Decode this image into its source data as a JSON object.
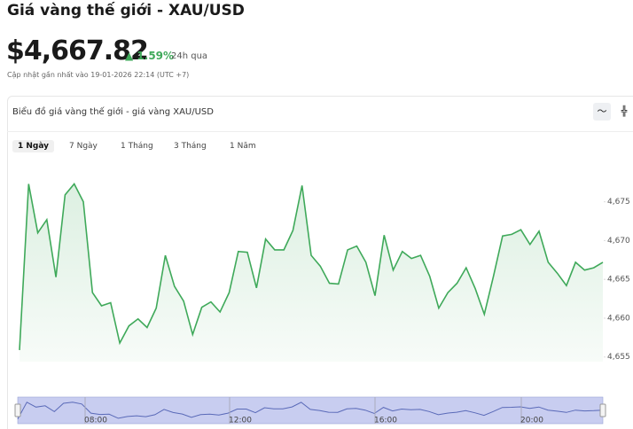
{
  "header": {
    "title": "Giá vàng thế giới - XAU/USD",
    "price": "$4,667.82",
    "change": "1.59%",
    "period": "24h qua",
    "updated": "Cập nhật gần nhất vào 19-01-2026 22:14 (UTC +7)"
  },
  "tabs": {
    "items": [
      "1 Ngày",
      "7 Ngày",
      "1 Tháng",
      "3 Tháng",
      "1 Năm"
    ],
    "active": 0
  },
  "chart_data": {
    "type": "area",
    "title": "Biểu đồ giá vàng thế giới - giá vàng XAU/USD",
    "color": "#3fa95a",
    "values": [
      4655.9,
      4677.3,
      4671.0,
      4672.7,
      4665.3,
      4675.9,
      4677.3,
      4675.0,
      4663.3,
      4661.6,
      4662.0,
      4656.8,
      4659.0,
      4659.9,
      4658.8,
      4661.3,
      4668.1,
      4664.1,
      4662.2,
      4657.9,
      4661.4,
      4662.1,
      4660.8,
      4663.3,
      4668.6,
      4668.5,
      4663.9,
      4670.2,
      4668.8,
      4668.8,
      4671.3,
      4677.1,
      4668.1,
      4666.7,
      4664.5,
      4664.4,
      4668.8,
      4669.3,
      4667.2,
      4662.9,
      4670.7,
      4666.2,
      4668.6,
      4667.7,
      4668.1,
      4665.4,
      4661.3,
      4663.3,
      4664.5,
      4666.5,
      4663.8,
      4660.5,
      4665.4,
      4670.6,
      4670.8,
      4671.4,
      4669.5,
      4671.2,
      4667.2,
      4665.8,
      4664.2,
      4667.2,
      4666.2,
      4666.5,
      4667.2
    ],
    "ylim": [
      4654.4,
      4679.3
    ],
    "yticks": [
      {
        "value": 4655,
        "label": "4,655"
      },
      {
        "value": 4660,
        "label": "4,660"
      },
      {
        "value": 4665,
        "label": "4,665"
      },
      {
        "value": 4670,
        "label": "4,670"
      },
      {
        "value": 4675,
        "label": "4,675"
      }
    ],
    "navigator_labels": [
      "08:00",
      "12:00",
      "16:00",
      "20:00"
    ]
  }
}
